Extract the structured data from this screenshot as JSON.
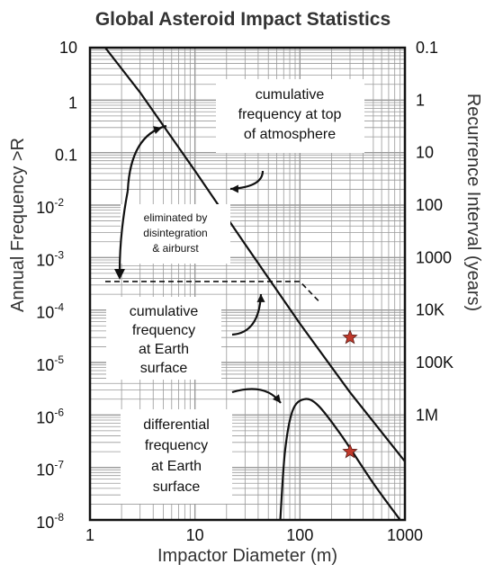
{
  "chart_data": {
    "type": "line",
    "title": "Global Asteroid Impact Statistics",
    "xlabel": "Impactor Diameter (m)",
    "ylabel": "Annual Frequency >R",
    "y2label": "Recurrence Interval (years)",
    "x_scale": "log",
    "y_scale": "log",
    "xlim": [
      1,
      1000
    ],
    "ylim": [
      1e-08,
      10
    ],
    "grid": true,
    "x_ticks": [
      {
        "value": 1,
        "label": "1"
      },
      {
        "value": 10,
        "label": "10"
      },
      {
        "value": 100,
        "label": "100"
      },
      {
        "value": 1000,
        "label": "1000"
      }
    ],
    "y_ticks": [
      {
        "value": 10,
        "base": "10",
        "exp": ""
      },
      {
        "value": 1,
        "base": "1",
        "exp": ""
      },
      {
        "value": 0.1,
        "base": "0.1",
        "exp": ""
      },
      {
        "value": 0.01,
        "base": "10",
        "exp": "-2"
      },
      {
        "value": 0.001,
        "base": "10",
        "exp": "-3"
      },
      {
        "value": 0.0001,
        "base": "10",
        "exp": "-4"
      },
      {
        "value": 1e-05,
        "base": "10",
        "exp": "-5"
      },
      {
        "value": 1e-06,
        "base": "10",
        "exp": "-6"
      },
      {
        "value": 1e-07,
        "base": "10",
        "exp": "-7"
      },
      {
        "value": 1e-08,
        "base": "10",
        "exp": "-8"
      }
    ],
    "y2_ticks": [
      {
        "value": 0.1,
        "label": "0.1"
      },
      {
        "value": 1,
        "label": "1"
      },
      {
        "value": 10,
        "label": "10"
      },
      {
        "value": 100,
        "label": "100"
      },
      {
        "value": 1000,
        "label": "1000"
      },
      {
        "value": 10000,
        "label": "10K"
      },
      {
        "value": 100000,
        "label": "100K"
      },
      {
        "value": 1000000,
        "label": "1M"
      }
    ],
    "series": [
      {
        "name": "cumulative frequency at top of atmosphere",
        "x": [
          1.4,
          3,
          10,
          30,
          100,
          300,
          1000
        ],
        "y": [
          10,
          1.4,
          0.045,
          0.0018,
          5.5e-05,
          2.7e-06,
          1.3e-07
        ],
        "style": "solid"
      },
      {
        "name": "cumulative frequency at Earth surface",
        "x": [
          1.4,
          10,
          30,
          100,
          150
        ],
        "y": [
          0.00035,
          0.00035,
          0.00035,
          0.00035,
          0.00015
        ],
        "style": "dashed"
      },
      {
        "name": "differential frequency at Earth surface",
        "x": [
          65,
          72,
          85,
          110,
          150,
          250,
          500,
          900
        ],
        "y": [
          1e-08,
          2e-07,
          1.2e-06,
          2e-06,
          1.5e-06,
          4e-07,
          5e-08,
          1e-08
        ],
        "style": "solid"
      }
    ],
    "markers": [
      {
        "x": 300,
        "y": 3e-05,
        "shape": "star",
        "color": "#c0392b"
      },
      {
        "x": 300,
        "y": 2e-07,
        "shape": "star",
        "color": "#c0392b"
      }
    ],
    "annotations": [
      {
        "lines": [
          "cumulative",
          "frequency at top",
          "of atmosphere"
        ]
      },
      {
        "lines": [
          "eliminated by",
          "disintegration",
          "& airburst"
        ]
      },
      {
        "lines": [
          "cumulative",
          "frequency",
          "at Earth",
          "surface"
        ]
      },
      {
        "lines": [
          "differential",
          "frequency",
          "at Earth",
          "surface"
        ]
      }
    ]
  }
}
